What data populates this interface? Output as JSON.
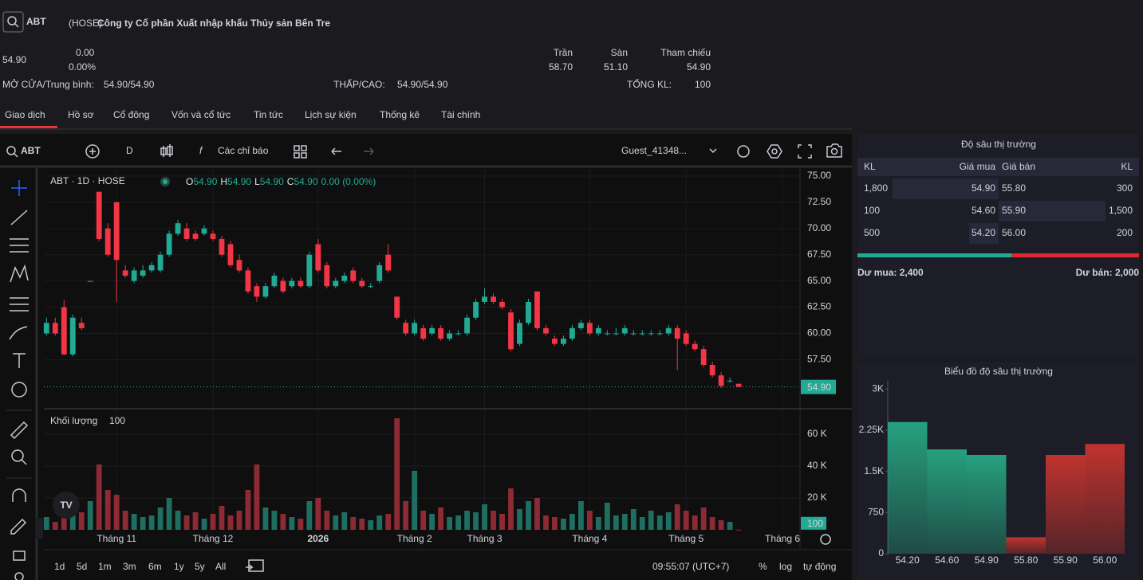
{
  "header": {
    "search_symbol": "ABT",
    "exchange": "(HOSE)",
    "company": "Công ty Cổ phần Xuất nhập khẩu Thủy sản Bến Tre",
    "price": "54.90",
    "change": "0.00",
    "change_pct": "0.00%",
    "open_avg_label": "MỞ CỬA/Trung bình:",
    "open_avg": "54.90/54.90",
    "low_high_label": "THẤP/CAO:",
    "low_high": "54.90/54.90",
    "ceiling_label": "Trần",
    "ceiling": "58.70",
    "floor_label": "Sàn",
    "floor": "51.10",
    "ref_label": "Tham chiếu",
    "ref": "54.90",
    "volume_label": "TỔNG KL:",
    "volume": "100"
  },
  "tabs": [
    "Giao dịch",
    "Hồ sơ",
    "Cổ đông",
    "Vốn và cổ tức",
    "Tin tức",
    "Lịch sự kiện",
    "Thống kê",
    "Tài chính"
  ],
  "toolbar": {
    "symbol": "ABT",
    "interval": "D",
    "indicators": "Các chỉ báo",
    "user": "Guest_41348..."
  },
  "bottom_bar": {
    "ranges": [
      "1d",
      "5d",
      "1m",
      "3m",
      "6m",
      "1y",
      "5y",
      "All"
    ],
    "time": "09:55:07 (UTC+7)",
    "percent": "%",
    "log": "log",
    "auto": "tự động"
  },
  "order_book": {
    "title": "Độ sâu thị trường",
    "headers": [
      "KL",
      "Giá mua",
      "Giá bán",
      "KL"
    ],
    "rows": [
      [
        "1,800",
        "54.90",
        "55.80",
        "300"
      ],
      [
        "100",
        "54.60",
        "55.90",
        "1,500"
      ],
      [
        "500",
        "54.20",
        "56.00",
        "200"
      ]
    ],
    "buy_total": "Dư mua: 2,400",
    "sell_total": "Dư bán: 2,000"
  },
  "chart_data": [
    {
      "type": "candlestick",
      "title": "ABT · 1D · HOSE",
      "legend": {
        "o": "O",
        "open": "54.90",
        "h": "H",
        "high": "54.90",
        "l": "L",
        "low": "54.90",
        "c": "C",
        "close": "54.90",
        "change": "0.00 (0.00%)"
      },
      "last_price_label": "54.90",
      "up_color": "#22ab94",
      "down_color": "#f23645",
      "open": [
        60.0,
        61.0,
        62.5,
        58.0,
        61.0,
        65.0,
        73.5,
        70.0,
        72.5,
        66.0,
        65.0,
        65.5,
        66.0,
        66.0,
        67.5,
        69.5,
        70.0,
        69.5,
        69.5,
        69.5,
        69.0,
        68.5,
        67.0,
        66.0,
        64.5,
        63.5,
        64.5,
        65.0,
        64.5,
        65.0,
        64.5,
        68.5,
        66.5,
        64.5,
        65.0,
        66.0,
        65.0,
        64.5,
        65.0,
        67.5,
        63.5,
        61.0,
        60.0,
        60.5,
        60.0,
        60.5,
        59.5,
        60.0,
        60.0,
        61.5,
        63.0,
        63.5,
        63.0,
        62.0,
        59.0,
        61.0,
        64.0,
        60.5,
        59.5,
        59.0,
        59.5,
        60.5,
        61.0,
        60.0,
        60.0,
        60.0,
        60.0,
        60.0,
        60.0,
        60.0,
        60.0,
        60.0,
        60.5,
        60.0,
        59.0,
        58.5,
        57.0,
        56.0,
        55.5,
        55.2
      ],
      "high": [
        61.5,
        61.5,
        63.2,
        61.8,
        61.5,
        65.0,
        73.5,
        70.5,
        72.5,
        66.5,
        66.3,
        66.5,
        66.8,
        67.8,
        69.8,
        70.8,
        70.5,
        69.8,
        70.3,
        69.8,
        69.3,
        68.8,
        67.5,
        66.3,
        64.8,
        64.8,
        65.8,
        65.3,
        65.3,
        65.3,
        67.8,
        69.0,
        66.8,
        65.3,
        65.8,
        66.3,
        65.3,
        64.8,
        66.8,
        68.5,
        63.5,
        61.3,
        61.3,
        60.8,
        60.8,
        60.8,
        60.3,
        60.3,
        61.8,
        63.3,
        64.3,
        63.8,
        63.3,
        62.3,
        61.3,
        63.3,
        64.0,
        60.8,
        59.8,
        59.8,
        60.8,
        61.3,
        61.3,
        60.8,
        60.3,
        60.5,
        60.8,
        60.3,
        60.3,
        60.3,
        60.3,
        60.8,
        60.8,
        60.3,
        59.3,
        58.8,
        57.3,
        56.3,
        55.8,
        55.2
      ],
      "low": [
        59.8,
        59.8,
        57.9,
        57.8,
        60.3,
        65.0,
        68.8,
        67.3,
        63.0,
        65.3,
        64.8,
        65.3,
        65.8,
        65.8,
        67.3,
        69.3,
        68.8,
        68.8,
        69.3,
        68.8,
        67.3,
        66.3,
        65.8,
        63.8,
        63.0,
        63.3,
        64.3,
        63.8,
        64.3,
        64.3,
        64.3,
        65.8,
        64.3,
        64.3,
        64.8,
        64.8,
        64.3,
        64.3,
        64.8,
        65.8,
        61.3,
        59.8,
        59.8,
        59.3,
        59.8,
        59.3,
        59.3,
        59.8,
        59.8,
        61.3,
        62.8,
        62.8,
        62.3,
        58.3,
        58.8,
        60.8,
        60.3,
        59.8,
        58.8,
        58.8,
        59.3,
        60.3,
        59.8,
        59.8,
        59.8,
        59.8,
        59.8,
        59.8,
        59.8,
        59.8,
        59.8,
        59.8,
        56.5,
        58.8,
        58.3,
        56.8,
        55.8,
        54.8,
        55.3,
        54.9
      ],
      "close": [
        61.0,
        60.0,
        58.0,
        61.5,
        60.5,
        65.0,
        69.0,
        67.5,
        67.0,
        65.5,
        66.0,
        66.0,
        66.5,
        67.5,
        69.5,
        70.5,
        69.0,
        69.0,
        70.0,
        69.0,
        67.5,
        66.5,
        66.0,
        64.0,
        63.5,
        64.5,
        65.5,
        64.0,
        65.0,
        64.5,
        67.5,
        66.0,
        64.5,
        65.0,
        65.5,
        65.0,
        64.5,
        64.5,
        66.5,
        66.0,
        61.5,
        60.0,
        61.0,
        59.5,
        60.5,
        59.5,
        60.0,
        60.0,
        61.5,
        63.0,
        63.5,
        63.0,
        62.5,
        58.5,
        61.0,
        63.0,
        60.5,
        60.0,
        59.0,
        59.5,
        60.5,
        61.0,
        60.0,
        60.5,
        60.0,
        60.0,
        60.5,
        60.0,
        60.0,
        60.0,
        60.0,
        60.5,
        59.5,
        59.0,
        58.5,
        57.0,
        56.0,
        55.0,
        55.5,
        54.9
      ],
      "xlim": [
        -0.3,
        86
      ],
      "xticks": [
        {
          "value": 8,
          "label": "Tháng 11"
        },
        {
          "value": 19,
          "label": "Tháng 12"
        },
        {
          "value": 31,
          "label": "2026"
        },
        {
          "value": 42,
          "label": "Tháng 2"
        },
        {
          "value": 50,
          "label": "Tháng 3"
        },
        {
          "value": 62,
          "label": "Tháng 4"
        },
        {
          "value": 73,
          "label": "Tháng 5"
        },
        {
          "value": 84,
          "label": "Tháng 6"
        }
      ],
      "ylim": [
        52.9,
        75.6
      ],
      "yticks": [
        {
          "value": 57.5,
          "label": "57.50"
        },
        {
          "value": 60,
          "label": "60.00"
        },
        {
          "value": 62.5,
          "label": "62.50"
        },
        {
          "value": 65,
          "label": "65.00"
        },
        {
          "value": 67.5,
          "label": "67.50"
        },
        {
          "value": 70,
          "label": "70.00"
        },
        {
          "value": 72.5,
          "label": "72.50"
        },
        {
          "value": 75,
          "label": "75.00"
        }
      ],
      "grid": true
    },
    {
      "type": "bar",
      "title": "Khối lượng",
      "last_value_label": "100",
      "up_color": "#1e6f61",
      "down_color": "#8e2a33",
      "values": [
        8000,
        5000,
        15000,
        9000,
        11000,
        18000,
        41000,
        25000,
        22000,
        12000,
        10000,
        8000,
        9000,
        14000,
        20000,
        12000,
        9000,
        11000,
        7000,
        10000,
        15000,
        9000,
        12000,
        25000,
        41000,
        14000,
        12000,
        10000,
        8000,
        7000,
        18000,
        20000,
        12000,
        9000,
        11000,
        8000,
        7000,
        6000,
        9000,
        10000,
        70000,
        18000,
        37000,
        12000,
        10000,
        14000,
        8000,
        9000,
        12000,
        11000,
        16000,
        12000,
        10000,
        26000,
        13000,
        18000,
        20000,
        9000,
        8000,
        7000,
        10000,
        18000,
        12000,
        8000,
        17000,
        9000,
        10000,
        13000,
        8000,
        12000,
        9000,
        11000,
        16000,
        12000,
        9000,
        14000,
        8000,
        6000,
        5000,
        100
      ],
      "ylim": [
        0,
        75000
      ],
      "yticks": [
        {
          "value": 20000,
          "label": "20 K"
        },
        {
          "value": 40000,
          "label": "40 K"
        },
        {
          "value": 60000,
          "label": "60 K"
        }
      ]
    },
    {
      "type": "depth",
      "title": "Biểu đồ độ sâu thị trường",
      "categories": [
        "54.20",
        "54.60",
        "54.90",
        "55.80",
        "55.90",
        "56.00"
      ],
      "values": [
        2400,
        1900,
        1800,
        300,
        1800,
        2000
      ],
      "colors": [
        "#26a17f",
        "#26a17f",
        "#26a17f",
        "#c0332f",
        "#c0332f",
        "#c0332f"
      ],
      "ylim": [
        0,
        3150
      ],
      "yticks": [
        0,
        750,
        {
          "value": 1500,
          "label": "1.5K"
        },
        {
          "value": 2250,
          "label": "2.25K"
        },
        {
          "value": 3000,
          "label": "3K"
        }
      ]
    }
  ]
}
